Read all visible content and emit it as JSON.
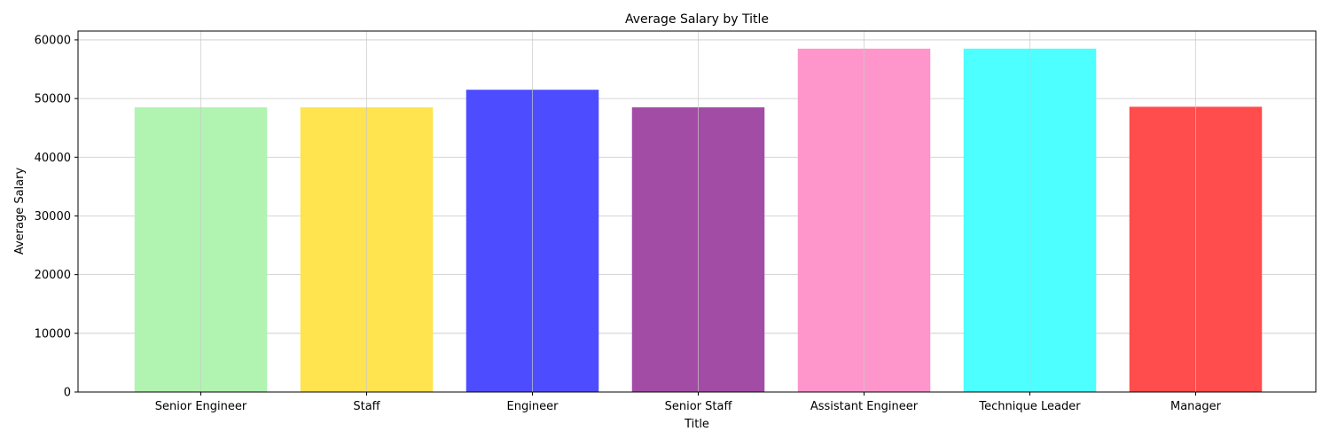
{
  "chart_data": {
    "type": "bar",
    "title": "Average Salary by Title",
    "xlabel": "Title",
    "ylabel": "Average Salary",
    "categories": [
      "Senior Engineer",
      "Staff",
      "Engineer",
      "Senior Staff",
      "Assistant Engineer",
      "Technique Leader",
      "Manager"
    ],
    "values": [
      48500,
      48500,
      51500,
      48500,
      58500,
      58500,
      48600
    ],
    "colors": [
      "#b1f3b1",
      "#ffe34f",
      "#4d4dff",
      "#a34ca6",
      "#ff96cb",
      "#4dffff",
      "#ff4c4c"
    ],
    "ylim": [
      0,
      61500
    ],
    "yticks": [
      0,
      10000,
      20000,
      30000,
      40000,
      50000,
      60000
    ],
    "grid": true,
    "legend": "none"
  }
}
